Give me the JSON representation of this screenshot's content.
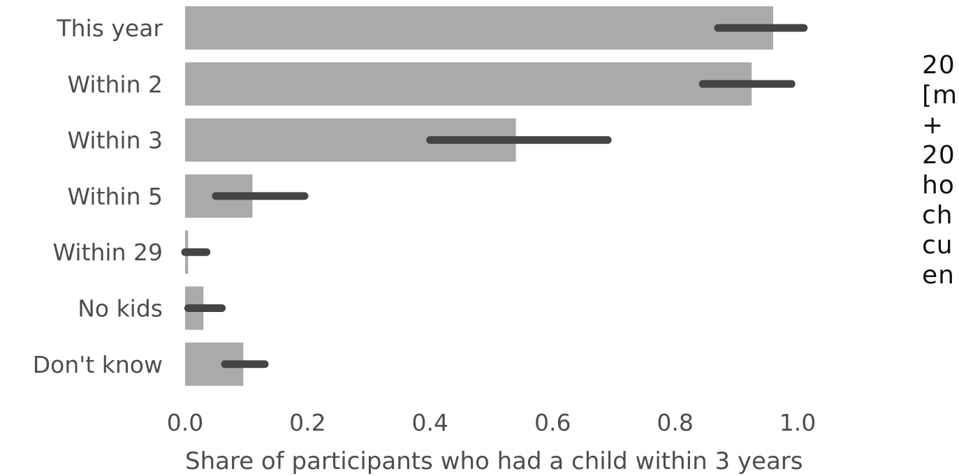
{
  "chart_data": {
    "type": "bar",
    "orientation": "horizontal",
    "categories": [
      "This year",
      "Within 2",
      "Within 3",
      "Within 5",
      "Within 29",
      "No kids",
      "Don't know"
    ],
    "values": [
      0.96,
      0.925,
      0.54,
      0.11,
      0.005,
      0.03,
      0.095
    ],
    "error_low": [
      0.87,
      0.845,
      0.4,
      0.05,
      0.0,
      0.005,
      0.065
    ],
    "error_high": [
      1.01,
      0.99,
      0.69,
      0.195,
      0.035,
      0.06,
      0.13
    ],
    "xlabel": "Share of participants who had a child within 3 years",
    "ylabel": "",
    "xlim": [
      0.0,
      1.0
    ],
    "xticks": [
      "0.0",
      "0.2",
      "0.4",
      "0.6",
      "0.8",
      "1.0"
    ],
    "grid": false,
    "bar_color": "#aaaaaa",
    "errorbar_color": "#444444"
  },
  "side_text": {
    "lines": [
      "20",
      "[m",
      "+",
      "20",
      "ho",
      "ch",
      "cu",
      "en"
    ]
  }
}
